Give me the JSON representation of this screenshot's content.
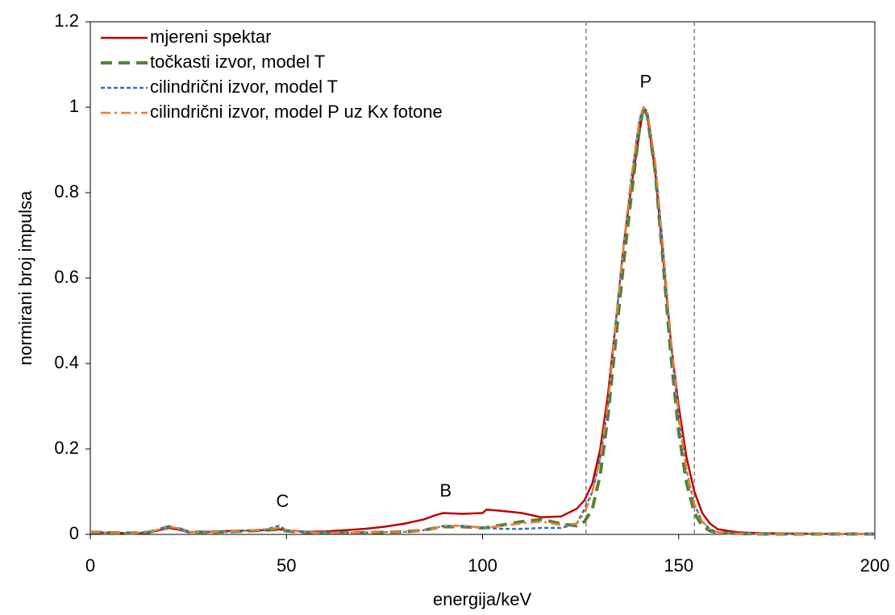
{
  "chart_data": {
    "type": "line",
    "x_label": "energija/keV",
    "y_label": "normirani broj impulsa",
    "xlim": [
      0,
      200
    ],
    "xticks": [
      0,
      50,
      100,
      150,
      200
    ],
    "ylim": [
      0,
      1.2
    ],
    "yticks": [
      0,
      0.2,
      0.4,
      0.6,
      0.8,
      1,
      1.2
    ],
    "grid": false,
    "legend": "upper left",
    "vlines": [
      126.4,
      154
    ],
    "annotations": [
      {
        "text": "C",
        "x": 49,
        "y": 0.075
      },
      {
        "text": "B",
        "x": 90.6,
        "y": 0.1
      },
      {
        "text": "P",
        "x": 141.6,
        "y": 1.057
      }
    ],
    "x": [
      0,
      5,
      10,
      15,
      20,
      22,
      25,
      30,
      35,
      40,
      45,
      48,
      50,
      55,
      60,
      65,
      70,
      75,
      80,
      85,
      88,
      90,
      95,
      100,
      101,
      105,
      110,
      115,
      120,
      124,
      126,
      128,
      130,
      132,
      134,
      136,
      138,
      140,
      141,
      142,
      144,
      146,
      148,
      150,
      152,
      154,
      156,
      158,
      160,
      165,
      170,
      180,
      190,
      200
    ],
    "series": [
      {
        "name": "mjereni spektar",
        "color": "#c00000",
        "dash": "solid",
        "values": [
          0.005,
          0.004,
          0.003,
          0.004,
          0.015,
          0.012,
          0.005,
          0.006,
          0.008,
          0.009,
          0.01,
          0.012,
          0.01,
          0.006,
          0.007,
          0.01,
          0.013,
          0.018,
          0.025,
          0.035,
          0.045,
          0.05,
          0.048,
          0.05,
          0.058,
          0.055,
          0.05,
          0.04,
          0.042,
          0.06,
          0.08,
          0.12,
          0.2,
          0.33,
          0.5,
          0.68,
          0.82,
          0.94,
          1.0,
          0.98,
          0.85,
          0.65,
          0.45,
          0.3,
          0.18,
          0.1,
          0.05,
          0.025,
          0.012,
          0.005,
          0.003,
          0.002,
          0.001,
          0.001
        ]
      },
      {
        "name": "točkasti izvor, model T",
        "color": "#538135",
        "dash": "dashed",
        "values": [
          0.005,
          0.004,
          0.003,
          0.005,
          0.018,
          0.015,
          0.006,
          0.005,
          0.006,
          0.008,
          0.01,
          0.012,
          0.008,
          0.005,
          0.004,
          0.004,
          0.004,
          0.005,
          0.006,
          0.01,
          0.015,
          0.018,
          0.018,
          0.015,
          0.016,
          0.022,
          0.03,
          0.035,
          0.025,
          0.02,
          0.03,
          0.06,
          0.14,
          0.28,
          0.46,
          0.64,
          0.8,
          0.95,
          1.0,
          0.98,
          0.85,
          0.64,
          0.42,
          0.24,
          0.12,
          0.05,
          0.02,
          0.008,
          0.004,
          0.002,
          0.001,
          0.001,
          0.001,
          0.001
        ]
      },
      {
        "name": "cilindrični izvor, model T",
        "color": "#2e75b6",
        "dash": "dotted",
        "values": [
          0.005,
          0.004,
          0.003,
          0.005,
          0.018,
          0.015,
          0.006,
          0.005,
          0.006,
          0.009,
          0.012,
          0.02,
          0.01,
          0.005,
          0.004,
          0.004,
          0.004,
          0.005,
          0.006,
          0.01,
          0.015,
          0.02,
          0.02,
          0.015,
          0.015,
          0.013,
          0.013,
          0.015,
          0.015,
          0.025,
          0.06,
          0.1,
          0.18,
          0.3,
          0.5,
          0.68,
          0.84,
          0.97,
          1.0,
          0.99,
          0.87,
          0.67,
          0.45,
          0.27,
          0.15,
          0.07,
          0.03,
          0.012,
          0.005,
          0.002,
          0.001,
          0.001,
          0.001,
          0.001
        ]
      },
      {
        "name": "cilindrični izvor, model P uz Kx fotone",
        "color": "#ed7d31",
        "dash": "dashdot",
        "values": [
          0.005,
          0.004,
          0.003,
          0.005,
          0.018,
          0.015,
          0.006,
          0.005,
          0.006,
          0.009,
          0.012,
          0.015,
          0.01,
          0.005,
          0.004,
          0.004,
          0.004,
          0.005,
          0.006,
          0.01,
          0.015,
          0.02,
          0.02,
          0.016,
          0.016,
          0.02,
          0.026,
          0.03,
          0.022,
          0.025,
          0.05,
          0.1,
          0.18,
          0.31,
          0.5,
          0.68,
          0.84,
          0.97,
          1.0,
          0.99,
          0.87,
          0.67,
          0.46,
          0.28,
          0.15,
          0.07,
          0.03,
          0.012,
          0.005,
          0.002,
          0.001,
          0.001,
          0.001,
          0.001
        ]
      }
    ]
  }
}
